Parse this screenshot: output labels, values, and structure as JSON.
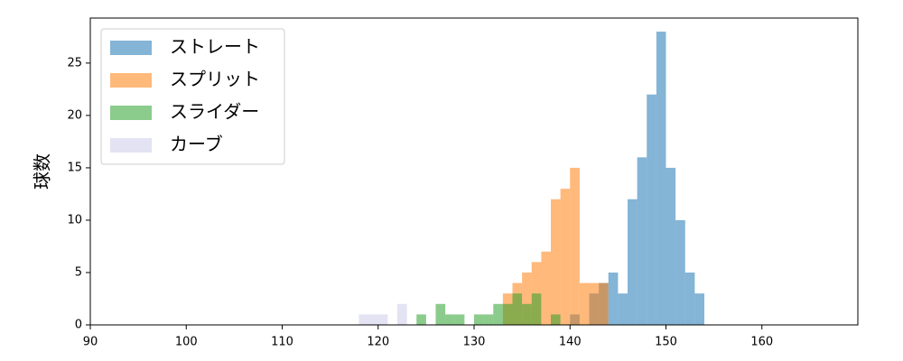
{
  "chart_data": {
    "type": "histogram",
    "ylabel": "球数",
    "xlim": [
      90,
      170
    ],
    "ylim": [
      0,
      29.3
    ],
    "xticks": [
      90,
      100,
      110,
      120,
      130,
      140,
      150,
      160
    ],
    "yticks": [
      0,
      5,
      10,
      15,
      20,
      25
    ],
    "legend": "upper left",
    "series": [
      {
        "name": "ストレート",
        "color": "#1f77b4",
        "bins": [
          140,
          141,
          142,
          143,
          144,
          145,
          146,
          147,
          148,
          149,
          150,
          151,
          152,
          153,
          154
        ],
        "values": [
          1,
          0,
          3,
          4,
          5,
          3,
          12,
          16,
          22,
          28,
          15,
          10,
          5,
          3
        ]
      },
      {
        "name": "スプリット",
        "color": "#ff7f0e",
        "bins": [
          133,
          134,
          135,
          136,
          137,
          138,
          139,
          140,
          141,
          142,
          143,
          144
        ],
        "values": [
          3,
          4,
          5,
          6,
          7,
          12,
          13,
          15,
          4,
          4,
          4
        ]
      },
      {
        "name": "スライダー",
        "color": "#2ca02c",
        "bins": [
          124,
          125,
          126,
          127,
          128,
          129,
          130,
          131,
          132,
          133,
          134,
          135,
          136,
          137,
          138,
          139
        ],
        "values": [
          1,
          0,
          2,
          1,
          1,
          0,
          1,
          1,
          2,
          2,
          3,
          2,
          3,
          0,
          1
        ]
      },
      {
        "name": "カーブ",
        "color": "#ccccea",
        "bins": [
          118,
          119,
          120,
          121,
          122,
          123
        ],
        "values": [
          1,
          1,
          1,
          0,
          2
        ]
      }
    ]
  }
}
